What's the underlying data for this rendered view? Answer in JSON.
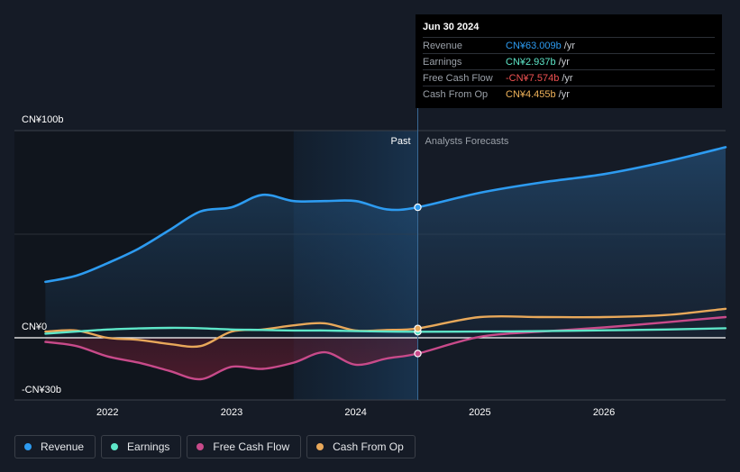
{
  "tooltip": {
    "date": "Jun 30 2024",
    "rows": [
      {
        "label": "Revenue",
        "value": "CN¥63.009b",
        "unit": "/yr",
        "color": "#2d9bf0"
      },
      {
        "label": "Earnings",
        "value": "CN¥2.937b",
        "unit": "/yr",
        "color": "#5ee6c8"
      },
      {
        "label": "Free Cash Flow",
        "value": "-CN¥7.574b",
        "unit": "/yr",
        "color": "#f05252"
      },
      {
        "label": "Cash From Op",
        "value": "CN¥4.455b",
        "unit": "/yr",
        "color": "#f0b35a"
      }
    ]
  },
  "legend": [
    {
      "label": "Revenue",
      "color": "#2d9bf0"
    },
    {
      "label": "Earnings",
      "color": "#5ee6c8"
    },
    {
      "label": "Free Cash Flow",
      "color": "#c84a8a"
    },
    {
      "label": "Cash From Op",
      "color": "#e8a85a"
    }
  ],
  "chart_data": {
    "type": "line",
    "y_tick_labels": [
      "CN¥100b",
      "CN¥0",
      "-CN¥30b"
    ],
    "y_ticks": [
      100,
      0,
      -30
    ],
    "x_tick_labels": [
      "2022",
      "2023",
      "2024",
      "2025",
      "2026"
    ],
    "x_ticks": [
      2022,
      2023,
      2024,
      2025,
      2026
    ],
    "xlim": [
      2021.25,
      2026.98
    ],
    "ylim": [
      -30,
      100
    ],
    "past_label": "Past",
    "forecast_label": "Analysts Forecasts",
    "highlight_range": [
      2023.5,
      2024.5
    ],
    "divider_x": 2024.5,
    "series": [
      {
        "name": "Revenue",
        "color": "#2d9bf0",
        "x": [
          2021.5,
          2021.75,
          2022.0,
          2022.25,
          2022.5,
          2022.75,
          2023.0,
          2023.25,
          2023.5,
          2023.75,
          2024.0,
          2024.25,
          2024.5,
          2025.0,
          2025.5,
          2026.0,
          2026.5,
          2026.98
        ],
        "values": [
          27,
          30,
          36,
          43,
          52,
          61,
          63,
          69,
          66,
          66,
          66,
          62,
          63,
          70,
          75,
          79,
          85,
          92
        ]
      },
      {
        "name": "Earnings",
        "color": "#5ee6c8",
        "x": [
          2021.5,
          2021.75,
          2022.0,
          2022.25,
          2022.5,
          2022.75,
          2023.0,
          2023.25,
          2023.5,
          2023.75,
          2024.0,
          2024.25,
          2024.5,
          2025.0,
          2025.5,
          2026.0,
          2026.5,
          2026.98
        ],
        "values": [
          2,
          3,
          4,
          4.5,
          4.8,
          4.6,
          4,
          3.8,
          3.5,
          3.5,
          3.2,
          3.0,
          2.9,
          3.0,
          3.2,
          3.6,
          4.0,
          4.6
        ]
      },
      {
        "name": "Free Cash Flow",
        "color": "#c84a8a",
        "x": [
          2021.5,
          2021.75,
          2022.0,
          2022.25,
          2022.5,
          2022.75,
          2023.0,
          2023.25,
          2023.5,
          2023.75,
          2024.0,
          2024.25,
          2024.5,
          2025.0,
          2025.5,
          2026.0,
          2026.5,
          2026.98
        ],
        "values": [
          -2,
          -4,
          -9,
          -12,
          -16,
          -20,
          -14,
          -15,
          -12,
          -7,
          -13,
          -10,
          -7.6,
          0.5,
          3,
          5,
          7.5,
          10
        ]
      },
      {
        "name": "Cash From Op",
        "color": "#e8a85a",
        "x": [
          2021.5,
          2021.75,
          2022.0,
          2022.25,
          2022.5,
          2022.75,
          2023.0,
          2023.25,
          2023.5,
          2023.75,
          2024.0,
          2024.25,
          2024.5,
          2025.0,
          2025.5,
          2026.0,
          2026.5,
          2026.98
        ],
        "values": [
          3,
          3.5,
          0,
          -1,
          -3,
          -4,
          3,
          4,
          6,
          7,
          3.5,
          3.8,
          4.5,
          10,
          10,
          10,
          11,
          14
        ]
      }
    ]
  }
}
